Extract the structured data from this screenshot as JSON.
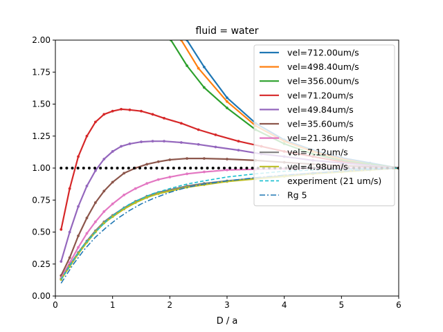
{
  "chart_data": {
    "type": "line",
    "title": "fluid = water",
    "xlabel": "D / a",
    "ylabel": "",
    "xlim": [
      0,
      6
    ],
    "ylim": [
      0,
      2
    ],
    "xticks": [
      "0",
      "1",
      "2",
      "3",
      "4",
      "5",
      "6"
    ],
    "yticks": [
      "0.00",
      "0.25",
      "0.50",
      "0.75",
      "1.00",
      "1.25",
      "1.50",
      "1.75",
      "2.00"
    ],
    "grid": false,
    "legend_position": "upper-right",
    "series": [
      {
        "name": "vel=712.00um/s",
        "color": "#1f77b4",
        "style": "solid",
        "markers": true,
        "x": [
          2.3,
          2.6,
          3.0,
          3.5,
          4.0,
          4.5,
          5.0,
          5.5,
          6.0
        ],
        "y": [
          2.0,
          1.79,
          1.55,
          1.35,
          1.22,
          1.14,
          1.08,
          1.04,
          1.0
        ]
      },
      {
        "name": "vel=498.40um/s",
        "color": "#ff7f0e",
        "style": "solid",
        "markers": true,
        "x": [
          2.2,
          2.5,
          3.0,
          3.5,
          4.0,
          4.5,
          5.0,
          5.5,
          6.0
        ],
        "y": [
          2.0,
          1.78,
          1.52,
          1.33,
          1.21,
          1.13,
          1.07,
          1.03,
          1.0
        ]
      },
      {
        "name": "vel=356.00um/s",
        "color": "#2ca02c",
        "style": "solid",
        "markers": true,
        "x": [
          2.02,
          2.3,
          2.6,
          3.0,
          3.5,
          4.0,
          4.5,
          5.0,
          5.5,
          6.0
        ],
        "y": [
          2.0,
          1.8,
          1.63,
          1.47,
          1.3,
          1.19,
          1.11,
          1.06,
          1.03,
          1.0
        ]
      },
      {
        "name": "vel=71.20um/s",
        "color": "#d62728",
        "style": "solid",
        "markers": true,
        "x": [
          0.1,
          0.25,
          0.4,
          0.55,
          0.7,
          0.85,
          1.0,
          1.15,
          1.3,
          1.5,
          1.7,
          1.9,
          2.2,
          2.5,
          2.8,
          3.2,
          3.6,
          4.0,
          4.5,
          5.0,
          5.5,
          6.0
        ],
        "y": [
          0.52,
          0.84,
          1.09,
          1.25,
          1.36,
          1.42,
          1.445,
          1.46,
          1.455,
          1.445,
          1.42,
          1.39,
          1.35,
          1.3,
          1.26,
          1.21,
          1.17,
          1.13,
          1.09,
          1.05,
          1.02,
          1.0
        ]
      },
      {
        "name": "vel=49.84um/s",
        "color": "#9467bd",
        "style": "solid",
        "markers": true,
        "x": [
          0.1,
          0.25,
          0.4,
          0.55,
          0.7,
          0.85,
          1.0,
          1.15,
          1.3,
          1.5,
          1.7,
          1.9,
          2.2,
          2.5,
          2.8,
          3.2,
          3.6,
          4.0,
          4.5,
          5.0,
          5.5,
          6.0
        ],
        "y": [
          0.27,
          0.5,
          0.7,
          0.86,
          0.98,
          1.07,
          1.13,
          1.17,
          1.19,
          1.205,
          1.21,
          1.21,
          1.2,
          1.185,
          1.165,
          1.14,
          1.11,
          1.09,
          1.06,
          1.04,
          1.02,
          1.0
        ]
      },
      {
        "name": "vel=35.60um/s",
        "color": "#8c564b",
        "style": "solid",
        "markers": true,
        "x": [
          0.1,
          0.25,
          0.4,
          0.55,
          0.7,
          0.85,
          1.0,
          1.2,
          1.4,
          1.6,
          1.8,
          2.0,
          2.3,
          2.6,
          3.0,
          3.5,
          4.0,
          4.5,
          5.0,
          5.5,
          6.0
        ],
        "y": [
          0.16,
          0.3,
          0.47,
          0.61,
          0.73,
          0.82,
          0.89,
          0.96,
          1.0,
          1.03,
          1.05,
          1.065,
          1.075,
          1.075,
          1.07,
          1.06,
          1.045,
          1.03,
          1.02,
          1.01,
          1.0
        ]
      },
      {
        "name": "vel=21.36um/s",
        "color": "#e377c2",
        "style": "solid",
        "markers": true,
        "x": [
          0.1,
          0.25,
          0.4,
          0.55,
          0.7,
          0.85,
          1.0,
          1.2,
          1.4,
          1.6,
          1.8,
          2.0,
          2.3,
          2.6,
          3.0,
          3.5,
          4.0,
          4.5,
          5.0,
          5.5,
          6.0
        ],
        "y": [
          0.14,
          0.26,
          0.38,
          0.49,
          0.58,
          0.66,
          0.72,
          0.79,
          0.84,
          0.88,
          0.91,
          0.93,
          0.955,
          0.97,
          0.985,
          0.99,
          0.995,
          1.0,
          1.0,
          1.0,
          1.0
        ]
      },
      {
        "name": "vel=7.12um/s",
        "color": "#7f7f7f",
        "style": "solid",
        "markers": true,
        "x": [
          0.1,
          0.25,
          0.4,
          0.55,
          0.7,
          0.85,
          1.0,
          1.2,
          1.4,
          1.6,
          1.8,
          2.0,
          2.3,
          2.6,
          3.0,
          3.5,
          4.0,
          4.5,
          5.0,
          5.5,
          6.0
        ],
        "y": [
          0.13,
          0.24,
          0.34,
          0.43,
          0.51,
          0.58,
          0.63,
          0.69,
          0.74,
          0.78,
          0.81,
          0.83,
          0.86,
          0.88,
          0.9,
          0.92,
          0.94,
          0.96,
          0.975,
          0.99,
          1.0
        ]
      },
      {
        "name": "vel=4.98um/s",
        "color": "#bcbd22",
        "style": "solid",
        "markers": true,
        "x": [
          0.1,
          0.25,
          0.4,
          0.55,
          0.7,
          0.85,
          1.0,
          1.2,
          1.4,
          1.6,
          1.8,
          2.0,
          2.3,
          2.6,
          3.0,
          3.5,
          4.0,
          4.5,
          5.0,
          5.5,
          6.0
        ],
        "y": [
          0.13,
          0.23,
          0.33,
          0.42,
          0.5,
          0.57,
          0.62,
          0.68,
          0.73,
          0.77,
          0.8,
          0.82,
          0.85,
          0.87,
          0.895,
          0.915,
          0.935,
          0.955,
          0.97,
          0.985,
          1.0
        ]
      },
      {
        "name": "experiment (21 um/s)",
        "color": "#17becf",
        "style": "dashed",
        "markers": false,
        "x": [
          0.1,
          0.3,
          0.5,
          0.7,
          0.9,
          1.1,
          1.3,
          1.5,
          1.7,
          2.0,
          2.3,
          2.6,
          3.0,
          3.5,
          4.0,
          4.5,
          5.0,
          6.0
        ],
        "y": [
          0.13,
          0.27,
          0.4,
          0.5,
          0.59,
          0.66,
          0.72,
          0.76,
          0.8,
          0.84,
          0.875,
          0.9,
          0.93,
          0.955,
          0.975,
          0.985,
          0.99,
          1.0
        ]
      },
      {
        "name": "Rg 5",
        "color": "#1f77b4",
        "style": "dashdot",
        "markers": false,
        "x": [
          0.1,
          0.3,
          0.5,
          0.7,
          0.9,
          1.1,
          1.3,
          1.5,
          1.7,
          2.0,
          2.3,
          2.6,
          3.0,
          3.5,
          4.0,
          4.5,
          5.0,
          6.0
        ],
        "y": [
          0.1,
          0.24,
          0.36,
          0.46,
          0.54,
          0.61,
          0.67,
          0.72,
          0.76,
          0.81,
          0.85,
          0.875,
          0.9,
          0.925,
          0.945,
          0.96,
          0.975,
          1.0
        ]
      },
      {
        "name": "",
        "color": "#000000",
        "style": "dotted-thick",
        "markers": false,
        "x": [
          0.1,
          6.0
        ],
        "y": [
          1.0,
          1.0
        ]
      }
    ]
  }
}
